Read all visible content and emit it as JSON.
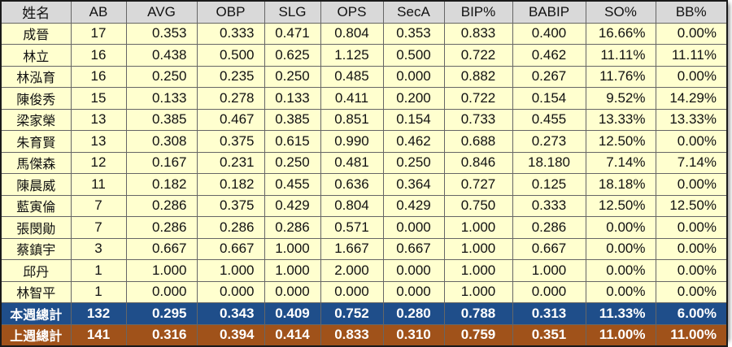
{
  "headers": [
    "姓名",
    "AB",
    "AVG",
    "OBP",
    "SLG",
    "OPS",
    "SecA",
    "BIP%",
    "BABIP",
    "SO%",
    "BB%"
  ],
  "rows": [
    [
      "成晉",
      "17",
      "0.353",
      "0.333",
      "0.471",
      "0.804",
      "0.353",
      "0.833",
      "0.400",
      "16.66%",
      "0.00%"
    ],
    [
      "林立",
      "16",
      "0.438",
      "0.500",
      "0.625",
      "1.125",
      "0.500",
      "0.722",
      "0.462",
      "11.11%",
      "11.11%"
    ],
    [
      "林泓育",
      "16",
      "0.250",
      "0.235",
      "0.250",
      "0.485",
      "0.000",
      "0.882",
      "0.267",
      "11.76%",
      "0.00%"
    ],
    [
      "陳俊秀",
      "15",
      "0.133",
      "0.278",
      "0.133",
      "0.411",
      "0.200",
      "0.722",
      "0.154",
      "9.52%",
      "14.29%"
    ],
    [
      "梁家榮",
      "13",
      "0.385",
      "0.467",
      "0.385",
      "0.851",
      "0.154",
      "0.733",
      "0.455",
      "13.33%",
      "13.33%"
    ],
    [
      "朱育賢",
      "13",
      "0.308",
      "0.375",
      "0.615",
      "0.990",
      "0.462",
      "0.688",
      "0.273",
      "12.50%",
      "0.00%"
    ],
    [
      "馬傑森",
      "12",
      "0.167",
      "0.231",
      "0.250",
      "0.481",
      "0.250",
      "0.846",
      "18.180",
      "7.14%",
      "7.14%"
    ],
    [
      "陳晨威",
      "11",
      "0.182",
      "0.182",
      "0.455",
      "0.636",
      "0.364",
      "0.727",
      "0.125",
      "18.18%",
      "0.00%"
    ],
    [
      "藍寅倫",
      "7",
      "0.286",
      "0.375",
      "0.429",
      "0.804",
      "0.429",
      "0.750",
      "0.333",
      "12.50%",
      "12.50%"
    ],
    [
      "張閔勛",
      "7",
      "0.286",
      "0.286",
      "0.286",
      "0.571",
      "0.000",
      "1.000",
      "0.286",
      "0.00%",
      "0.00%"
    ],
    [
      "蔡鎮宇",
      "3",
      "0.667",
      "0.667",
      "1.000",
      "1.667",
      "0.667",
      "1.000",
      "0.667",
      "0.00%",
      "0.00%"
    ],
    [
      "邱丹",
      "1",
      "1.000",
      "1.000",
      "1.000",
      "2.000",
      "0.000",
      "1.000",
      "1.000",
      "0.00%",
      "0.00%"
    ],
    [
      "林智平",
      "1",
      "0.000",
      "0.000",
      "0.000",
      "0.000",
      "0.000",
      "1.000",
      "0.000",
      "0.00%",
      "0.00%"
    ]
  ],
  "this_week": [
    "本週總計",
    "132",
    "0.295",
    "0.343",
    "0.409",
    "0.752",
    "0.280",
    "0.788",
    "0.313",
    "11.33%",
    "6.00%"
  ],
  "last_week": [
    "上週總計",
    "141",
    "0.316",
    "0.394",
    "0.414",
    "0.833",
    "0.310",
    "0.759",
    "0.351",
    "11.00%",
    "11.00%"
  ],
  "colors": {
    "header_bg": "#d9d9d9",
    "row_bg": "#ffffcf",
    "this_week_bg": "#1f4e8a",
    "last_week_bg": "#a0521a"
  }
}
